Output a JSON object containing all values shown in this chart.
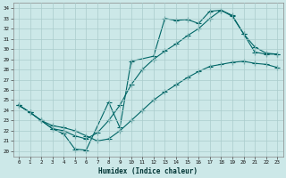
{
  "xlabel": "Humidex (Indice chaleur)",
  "bg_color": "#cce8e8",
  "grid_color": "#aacccc",
  "line_color": "#006666",
  "xlim": [
    -0.5,
    23.5
  ],
  "ylim": [
    19.5,
    34.5
  ],
  "xticks": [
    0,
    1,
    2,
    3,
    4,
    5,
    6,
    7,
    8,
    9,
    10,
    11,
    12,
    13,
    14,
    15,
    16,
    17,
    18,
    19,
    20,
    21,
    22,
    23
  ],
  "yticks": [
    20,
    21,
    22,
    23,
    24,
    25,
    26,
    27,
    28,
    29,
    30,
    31,
    32,
    33,
    34
  ],
  "line1_x": [
    0,
    1,
    2,
    3,
    4,
    5,
    6,
    8,
    9,
    10,
    12,
    13,
    14,
    15,
    16,
    17,
    18,
    19,
    20,
    21,
    22,
    23
  ],
  "line1_y": [
    24.5,
    23.8,
    23.0,
    22.2,
    21.7,
    20.2,
    20.1,
    24.8,
    22.3,
    28.8,
    29.3,
    33.0,
    32.8,
    32.9,
    32.5,
    33.7,
    33.8,
    33.3,
    31.5,
    29.7,
    29.5,
    29.5
  ],
  "line2_x": [
    0,
    1,
    2,
    3,
    4,
    5,
    6,
    7,
    8,
    9,
    10,
    11,
    12,
    13,
    14,
    15,
    16,
    17,
    18,
    19,
    20,
    21,
    22,
    23
  ],
  "line2_y": [
    24.5,
    23.8,
    23.0,
    22.2,
    22.0,
    21.5,
    21.2,
    21.8,
    23.0,
    24.5,
    26.5,
    28.0,
    29.0,
    29.8,
    30.5,
    31.3,
    32.0,
    33.0,
    33.8,
    33.2,
    31.5,
    30.2,
    29.6,
    29.5
  ],
  "line3_x": [
    0,
    1,
    2,
    3,
    4,
    5,
    6,
    7,
    8,
    9,
    10,
    11,
    12,
    13,
    14,
    15,
    16,
    17,
    18,
    19,
    20,
    21,
    22,
    23
  ],
  "line3_y": [
    24.5,
    23.8,
    23.0,
    22.5,
    22.3,
    22.0,
    21.5,
    21.0,
    21.2,
    22.0,
    23.0,
    24.0,
    25.0,
    25.8,
    26.5,
    27.2,
    27.8,
    28.3,
    28.5,
    28.7,
    28.8,
    28.6,
    28.5,
    28.2
  ]
}
